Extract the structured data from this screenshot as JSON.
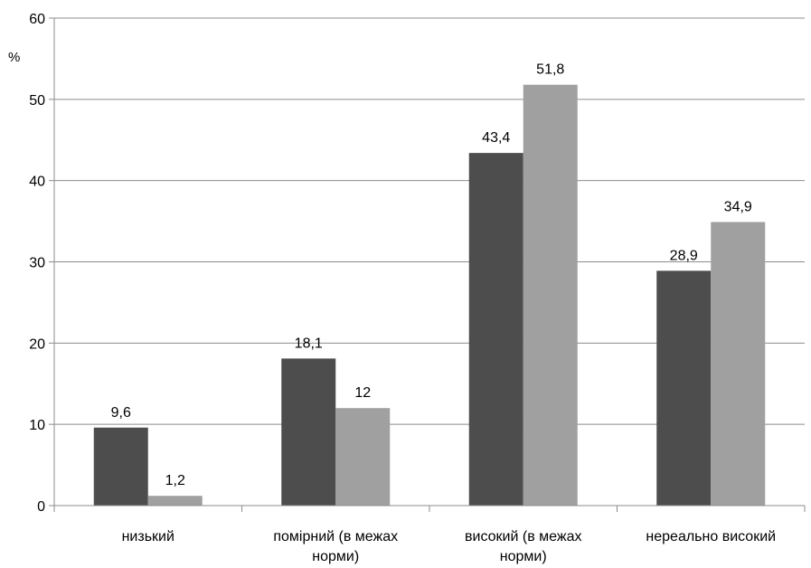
{
  "chart_data": {
    "type": "bar",
    "categories": [
      "низький",
      "помірний (в межах норми)",
      "високий (в межах норми)",
      "нереально високий"
    ],
    "category_label_lines": [
      [
        "низький"
      ],
      [
        "помірний (в межах",
        "норми)"
      ],
      [
        "високий (в межах",
        "норми)"
      ],
      [
        "нереально високий"
      ]
    ],
    "series": [
      {
        "values": [
          9.6,
          18.1,
          43.4,
          28.9
        ],
        "labels": [
          "9,6",
          "18,1",
          "43,4",
          "28,9"
        ],
        "color": "#4d4d4d"
      },
      {
        "values": [
          1.2,
          12,
          51.8,
          34.9
        ],
        "labels": [
          "1,2",
          "12",
          "51,8",
          "34,9"
        ],
        "color": "#a0a0a0"
      }
    ],
    "ylabel": "%",
    "ylim": [
      0,
      60
    ],
    "yticks": [
      0,
      10,
      20,
      30,
      40,
      50,
      60
    ],
    "grid": true,
    "legend": "none"
  }
}
